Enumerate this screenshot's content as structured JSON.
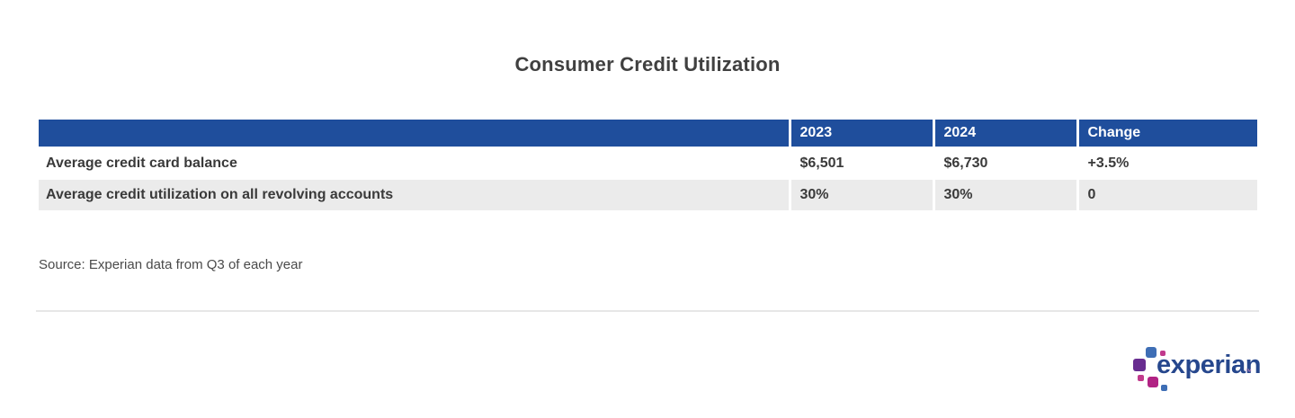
{
  "chart_data": {
    "type": "table",
    "title": "Consumer Credit Utilization",
    "columns": [
      "",
      "2023",
      "2024",
      "Change"
    ],
    "rows": [
      [
        "Average credit card balance",
        "$6,501",
        "$6,730",
        "+3.5%"
      ],
      [
        "Average credit utilization on all revolving accounts",
        "30%",
        "30%",
        "0"
      ]
    ],
    "source": "Source: Experian data from Q3 of each year"
  },
  "logo": {
    "wordmark": "experian",
    "trademark": "™"
  },
  "colors": {
    "header_bg": "#1f4e9c",
    "header_text": "#ffffff",
    "alt_row_bg": "#ebebeb",
    "body_text": "#3a3a3a",
    "title_text": "#404040",
    "divider": "#e7e7e7",
    "logo_wordmark": "#26478d",
    "logo_blue": "#3e6eb5",
    "logo_purple": "#682d90",
    "logo_magenta": "#c13a8c",
    "logo_crimson": "#b12384"
  }
}
